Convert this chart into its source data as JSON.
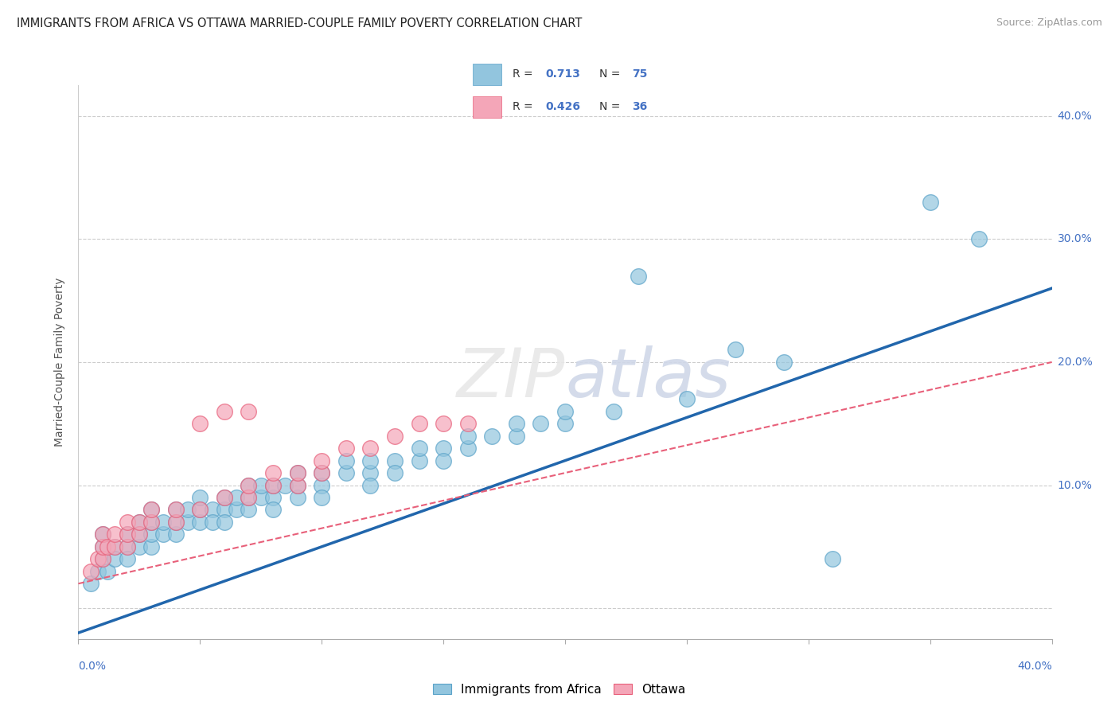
{
  "title": "IMMIGRANTS FROM AFRICA VS OTTAWA MARRIED-COUPLE FAMILY POVERTY CORRELATION CHART",
  "source": "Source: ZipAtlas.com",
  "ylabel": "Married-Couple Family Poverty",
  "xlim": [
    0.0,
    0.4
  ],
  "ylim": [
    -0.025,
    0.425
  ],
  "yticks": [
    0.0,
    0.1,
    0.2,
    0.3,
    0.4
  ],
  "blue_color": "#92c5de",
  "blue_edge_color": "#5ba3c9",
  "pink_color": "#f4a6b8",
  "pink_edge_color": "#e8607a",
  "blue_line_color": "#2166ac",
  "pink_line_color": "#e8607a",
  "watermark_color": "#e8e8e8",
  "blue_scatter": [
    [
      0.005,
      0.02
    ],
    [
      0.008,
      0.03
    ],
    [
      0.01,
      0.04
    ],
    [
      0.01,
      0.05
    ],
    [
      0.01,
      0.06
    ],
    [
      0.012,
      0.03
    ],
    [
      0.015,
      0.05
    ],
    [
      0.015,
      0.04
    ],
    [
      0.02,
      0.05
    ],
    [
      0.02,
      0.06
    ],
    [
      0.02,
      0.04
    ],
    [
      0.025,
      0.05
    ],
    [
      0.025,
      0.06
    ],
    [
      0.025,
      0.07
    ],
    [
      0.03,
      0.05
    ],
    [
      0.03,
      0.06
    ],
    [
      0.03,
      0.07
    ],
    [
      0.03,
      0.08
    ],
    [
      0.035,
      0.06
    ],
    [
      0.035,
      0.07
    ],
    [
      0.04,
      0.06
    ],
    [
      0.04,
      0.07
    ],
    [
      0.04,
      0.08
    ],
    [
      0.045,
      0.07
    ],
    [
      0.045,
      0.08
    ],
    [
      0.05,
      0.07
    ],
    [
      0.05,
      0.08
    ],
    [
      0.05,
      0.09
    ],
    [
      0.055,
      0.08
    ],
    [
      0.055,
      0.07
    ],
    [
      0.06,
      0.08
    ],
    [
      0.06,
      0.09
    ],
    [
      0.06,
      0.07
    ],
    [
      0.065,
      0.08
    ],
    [
      0.065,
      0.09
    ],
    [
      0.07,
      0.08
    ],
    [
      0.07,
      0.09
    ],
    [
      0.07,
      0.1
    ],
    [
      0.075,
      0.09
    ],
    [
      0.075,
      0.1
    ],
    [
      0.08,
      0.09
    ],
    [
      0.08,
      0.1
    ],
    [
      0.08,
      0.08
    ],
    [
      0.085,
      0.1
    ],
    [
      0.09,
      0.09
    ],
    [
      0.09,
      0.1
    ],
    [
      0.09,
      0.11
    ],
    [
      0.1,
      0.1
    ],
    [
      0.1,
      0.11
    ],
    [
      0.1,
      0.09
    ],
    [
      0.11,
      0.11
    ],
    [
      0.11,
      0.12
    ],
    [
      0.12,
      0.11
    ],
    [
      0.12,
      0.12
    ],
    [
      0.12,
      0.1
    ],
    [
      0.13,
      0.12
    ],
    [
      0.13,
      0.11
    ],
    [
      0.14,
      0.12
    ],
    [
      0.14,
      0.13
    ],
    [
      0.15,
      0.13
    ],
    [
      0.15,
      0.12
    ],
    [
      0.16,
      0.13
    ],
    [
      0.16,
      0.14
    ],
    [
      0.17,
      0.14
    ],
    [
      0.18,
      0.14
    ],
    [
      0.18,
      0.15
    ],
    [
      0.19,
      0.15
    ],
    [
      0.2,
      0.15
    ],
    [
      0.2,
      0.16
    ],
    [
      0.22,
      0.16
    ],
    [
      0.23,
      0.27
    ],
    [
      0.25,
      0.17
    ],
    [
      0.27,
      0.21
    ],
    [
      0.29,
      0.2
    ],
    [
      0.31,
      0.04
    ],
    [
      0.35,
      0.33
    ],
    [
      0.37,
      0.3
    ]
  ],
  "pink_scatter": [
    [
      0.005,
      0.03
    ],
    [
      0.008,
      0.04
    ],
    [
      0.01,
      0.04
    ],
    [
      0.01,
      0.05
    ],
    [
      0.01,
      0.06
    ],
    [
      0.012,
      0.05
    ],
    [
      0.015,
      0.05
    ],
    [
      0.015,
      0.06
    ],
    [
      0.02,
      0.05
    ],
    [
      0.02,
      0.06
    ],
    [
      0.02,
      0.07
    ],
    [
      0.025,
      0.06
    ],
    [
      0.025,
      0.07
    ],
    [
      0.03,
      0.07
    ],
    [
      0.03,
      0.08
    ],
    [
      0.04,
      0.07
    ],
    [
      0.04,
      0.08
    ],
    [
      0.05,
      0.08
    ],
    [
      0.05,
      0.15
    ],
    [
      0.06,
      0.09
    ],
    [
      0.06,
      0.16
    ],
    [
      0.07,
      0.09
    ],
    [
      0.07,
      0.1
    ],
    [
      0.07,
      0.16
    ],
    [
      0.08,
      0.1
    ],
    [
      0.08,
      0.11
    ],
    [
      0.09,
      0.1
    ],
    [
      0.09,
      0.11
    ],
    [
      0.1,
      0.11
    ],
    [
      0.1,
      0.12
    ],
    [
      0.11,
      0.13
    ],
    [
      0.12,
      0.13
    ],
    [
      0.13,
      0.14
    ],
    [
      0.14,
      0.15
    ],
    [
      0.15,
      0.15
    ],
    [
      0.16,
      0.15
    ]
  ],
  "blue_line_x": [
    0.0,
    0.4
  ],
  "blue_line_y": [
    -0.02,
    0.26
  ],
  "pink_line_x": [
    0.0,
    0.4
  ],
  "pink_line_y": [
    0.02,
    0.2
  ]
}
